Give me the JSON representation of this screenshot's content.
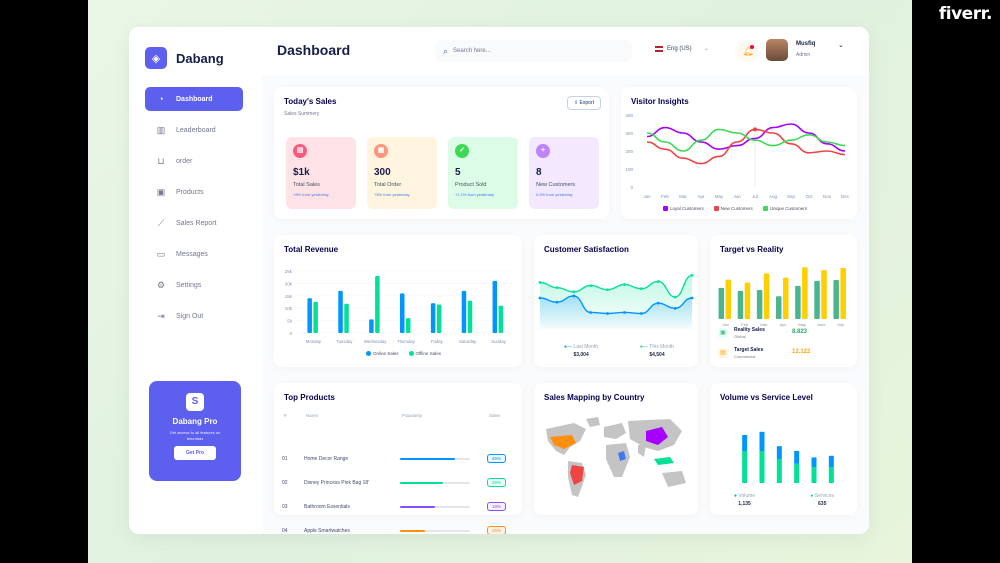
{
  "watermark": "fiverr.",
  "brand": {
    "name": "Dabang",
    "icon": "logo-icon"
  },
  "sidebar": {
    "items": [
      {
        "label": "Dashboard",
        "icon": "pie-chart-icon",
        "active": true
      },
      {
        "label": "Leaderboard",
        "icon": "bar-chart-icon"
      },
      {
        "label": "order",
        "icon": "cart-icon"
      },
      {
        "label": "Products",
        "icon": "bag-icon"
      },
      {
        "label": "Sales Report",
        "icon": "line-chart-icon"
      },
      {
        "label": "Messages",
        "icon": "message-icon"
      },
      {
        "label": "Settings",
        "icon": "gear-icon"
      },
      {
        "label": "Sign Out",
        "icon": "sign-out-icon"
      }
    ],
    "pro": {
      "title": "Dabang Pro",
      "desc": "Get access to all features on tetumbas",
      "button": "Get Pro"
    }
  },
  "header": {
    "title": "Dashboard",
    "search_placeholder": "Search here...",
    "language": "Eng (US)",
    "user": {
      "name": "Musfiq",
      "role": "Admin"
    }
  },
  "todays_sales": {
    "title": "Today's Sales",
    "subtitle": "Sales Summery",
    "export": "Export",
    "stats": [
      {
        "value": "$1k",
        "label": "Total Sales",
        "delta": "+8% from yesterday",
        "bg": "#ffe2e5",
        "icon_bg": "#fa5a7d",
        "icon": "chart-icon"
      },
      {
        "value": "300",
        "label": "Total Order",
        "delta": "+5% from yesterday",
        "bg": "#fff4de",
        "icon_bg": "#ff947a",
        "icon": "document-icon"
      },
      {
        "value": "5",
        "label": "Product Sold",
        "delta": "+1.2% from yesterday",
        "bg": "#dcfce7",
        "icon_bg": "#3cd856",
        "icon": "tag-icon"
      },
      {
        "value": "8",
        "label": "New Customers",
        "delta": "0.5% from yesterday",
        "bg": "#f3e8ff",
        "icon_bg": "#bf83ff",
        "icon": "user-add-icon"
      }
    ]
  },
  "visitor_insights": {
    "title": "Visitor Insights",
    "months": [
      "Jan",
      "Feb",
      "Mar",
      "Apr",
      "May",
      "Jun",
      "Jul",
      "Aug",
      "Sep",
      "Oct",
      "Nov",
      "Dec"
    ],
    "yticks": [
      "400",
      "300",
      "200",
      "100",
      "0"
    ],
    "legend": [
      "Loyal Customers",
      "New Customers",
      "Unique Customers"
    ],
    "colors": [
      "#a700ff",
      "#ef4444",
      "#3cd856"
    ]
  },
  "total_revenue": {
    "title": "Total Revenue",
    "yticks": [
      "25k",
      "20k",
      "15k",
      "10k",
      "5k",
      "0"
    ],
    "legend": [
      "Online Sales",
      "Offline Sales"
    ],
    "colors": [
      "#0095ff",
      "#00e096"
    ]
  },
  "customer_satisfaction": {
    "title": "Customer Satisfaction",
    "legend": [
      {
        "label": "Last Month",
        "value": "$3,004"
      },
      {
        "label": "This Month",
        "value": "$4,504"
      }
    ],
    "colors": [
      "#0095ff",
      "#07e098"
    ]
  },
  "target_vs_reality": {
    "title": "Target vs Reality",
    "rows": [
      {
        "label": "Reality Sales",
        "sub": "Global",
        "value": "8.823",
        "color": "#4ab58e",
        "icon": "bag-icon"
      },
      {
        "label": "Target Sales",
        "sub": "Commercial",
        "value": "12.122",
        "color": "#ffcf00",
        "icon": "ticket-icon"
      }
    ]
  },
  "top_products": {
    "title": "Top Products",
    "headers": [
      "#",
      "Name",
      "Popularity",
      "Sales"
    ],
    "rows": [
      {
        "num": "01",
        "name": "Home Decor Range",
        "pop": 0.78,
        "sales": "45%",
        "color": "#0095ff"
      },
      {
        "num": "02",
        "name": "Disney Princess Pink Bag 18'",
        "pop": 0.62,
        "sales": "29%",
        "color": "#00e096"
      },
      {
        "num": "03",
        "name": "Bathroom Essentials",
        "pop": 0.5,
        "sales": "18%",
        "color": "#884dff"
      },
      {
        "num": "04",
        "name": "Apple Smartwatches",
        "pop": 0.35,
        "sales": "25%",
        "color": "#ff8f0d"
      }
    ]
  },
  "sales_mapping": {
    "title": "Sales Mapping by Country"
  },
  "volume_service": {
    "title": "Volume vs Service Level",
    "legend": [
      {
        "label": "Volume",
        "value": "1,135"
      },
      {
        "label": "Services",
        "value": "635"
      }
    ],
    "colors": [
      "#0095ff",
      "#00e096"
    ]
  },
  "chart_data": [
    {
      "type": "line",
      "chart": "visitor_insights",
      "x": [
        "Jan",
        "Feb",
        "Mar",
        "Apr",
        "May",
        "Jun",
        "Jul",
        "Aug",
        "Sep",
        "Oct",
        "Nov",
        "Dec"
      ],
      "ylim": [
        0,
        400
      ],
      "series": [
        {
          "name": "Loyal Customers",
          "values": [
            280,
            330,
            300,
            250,
            210,
            230,
            270,
            330,
            350,
            300,
            240,
            200
          ]
        },
        {
          "name": "New Customers",
          "values": [
            250,
            210,
            160,
            130,
            170,
            250,
            320,
            300,
            240,
            190,
            200,
            180
          ]
        },
        {
          "name": "Unique Customers",
          "values": [
            300,
            250,
            200,
            260,
            320,
            300,
            260,
            230,
            260,
            290,
            250,
            230
          ]
        }
      ]
    },
    {
      "type": "bar",
      "chart": "total_revenue",
      "categories": [
        "Monday",
        "Tuesday",
        "Wednesday",
        "Thursday",
        "Friday",
        "Saturday",
        "Sunday"
      ],
      "ylim": [
        0,
        25000
      ],
      "series": [
        {
          "name": "Online Sales",
          "values": [
            14000,
            17000,
            5500,
            16000,
            12000,
            17000,
            21000
          ]
        },
        {
          "name": "Offline Sales",
          "values": [
            12500,
            11800,
            23000,
            6000,
            11500,
            13000,
            11000
          ]
        }
      ]
    },
    {
      "type": "area",
      "chart": "customer_satisfaction",
      "series": [
        {
          "name": "Last Month",
          "values": [
            3.0,
            2.6,
            3.2,
            1.6,
            1.5,
            1.6,
            1.5,
            2.5,
            2.0,
            3.0
          ]
        },
        {
          "name": "This Month",
          "values": [
            4.5,
            4.0,
            3.6,
            4.2,
            3.8,
            4.3,
            3.9,
            4.6,
            3.1,
            5.2
          ]
        }
      ]
    },
    {
      "type": "bar",
      "chart": "target_vs_reality",
      "categories": [
        "Jan",
        "Feb",
        "Mar",
        "Apr",
        "May",
        "June",
        "July"
      ],
      "series": [
        {
          "name": "Reality Sales",
          "values": [
            7.5,
            6.8,
            7.0,
            5.5,
            8.0,
            9.2,
            9.4
          ]
        },
        {
          "name": "Target Sales",
          "values": [
            9.5,
            8.8,
            11.0,
            10.0,
            12.5,
            11.8,
            12.3
          ]
        }
      ]
    },
    {
      "type": "bar",
      "chart": "volume_service",
      "series": [
        {
          "name": "Volume",
          "values": [
            5,
            6,
            4,
            4,
            3,
            3.5
          ]
        },
        {
          "name": "Services",
          "values": [
            10,
            10,
            7.5,
            6,
            5,
            5
          ]
        }
      ]
    }
  ]
}
